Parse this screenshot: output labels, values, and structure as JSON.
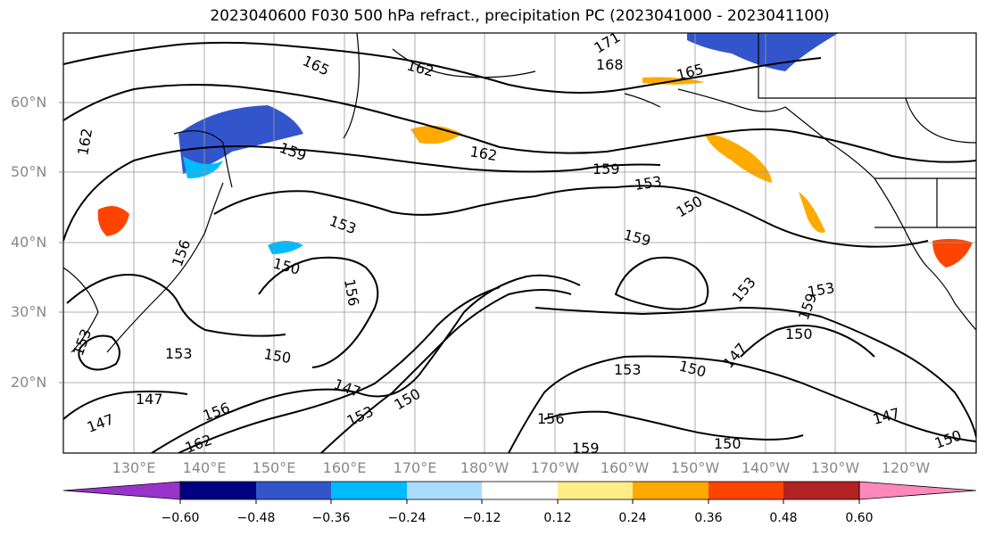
{
  "title": "2023040600 F030 500 hPa refract., precipitation PC (2023041000 - 2023041100)",
  "lat_labels": [
    "60°N",
    "50°N",
    "40°N",
    "30°N",
    "20°N"
  ],
  "lon_labels": [
    "130°E",
    "140°E",
    "150°E",
    "160°E",
    "170°E",
    "180°W",
    "170°W",
    "160°W",
    "150°W",
    "140°W",
    "130°W",
    "120°W"
  ],
  "colorbar": {
    "ticks": [
      "−0.60",
      "−0.48",
      "−0.36",
      "−0.24",
      "−0.12",
      "0.12",
      "0.24",
      "0.36",
      "0.48",
      "0.60"
    ],
    "colors": [
      "#9933cc",
      "#000080",
      "#3355cc",
      "#00bbff",
      "#aaddff",
      "#ffffff",
      "#ffee88",
      "#ffaa00",
      "#ff4400",
      "#b22222",
      "#ff88bb"
    ]
  },
  "contour_labels": [
    "165",
    "162",
    "171",
    "168",
    "165",
    "162",
    "159",
    "162",
    "159",
    "153",
    "150",
    "153",
    "159",
    "150",
    "156",
    "156",
    "153",
    "153",
    "150",
    "147",
    "150",
    "153",
    "150",
    "147",
    "147",
    "153",
    "156",
    "147",
    "162",
    "153",
    "156",
    "159",
    "150",
    "147",
    "150",
    "159",
    "153",
    "150"
  ],
  "colors": {
    "contour": "#000000",
    "grid": "#999999",
    "axis_label": "#888888"
  }
}
